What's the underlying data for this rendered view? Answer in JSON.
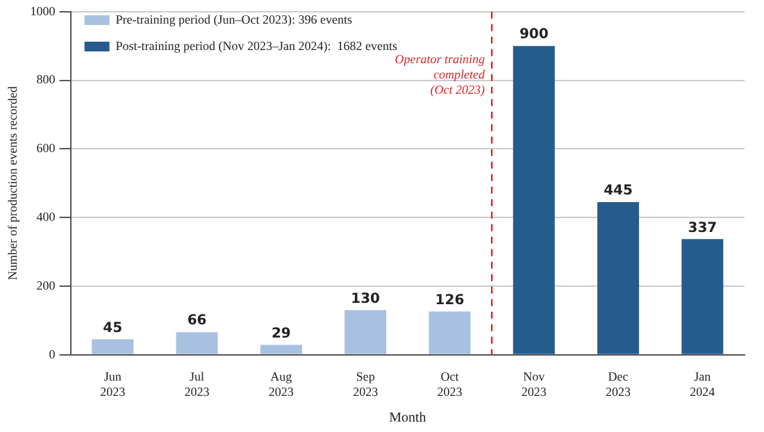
{
  "chart_data": {
    "type": "bar",
    "xlabel": "Month",
    "ylabel": "Number of production events recorded",
    "categories": [
      "Jun 2023",
      "Jul 2023",
      "Aug 2023",
      "Sep 2023",
      "Oct 2023",
      "Nov 2023",
      "Dec 2023",
      "Jan 2024"
    ],
    "series": [
      {
        "name": "Pre-training period (Jun–Oct 2023): 396 events",
        "color": "#a9c1e1",
        "values": [
          45,
          66,
          29,
          130,
          126,
          null,
          null,
          null
        ]
      },
      {
        "name": "Post-training period (Nov 2023–Jan 2024):  1682 events",
        "color": "#265b8e",
        "values": [
          null,
          null,
          null,
          null,
          null,
          900,
          445,
          337
        ]
      }
    ],
    "ylim": [
      0,
      1000
    ],
    "yticks": [
      0,
      200,
      400,
      600,
      800,
      1000
    ],
    "grid": "y",
    "legend": "top left",
    "data_labels": true,
    "ref_lines": [
      {
        "axis": "x",
        "value": "Oct 2023",
        "label": "Operator training\ncompleted\n(Oct 2023)",
        "color": "#d62728",
        "line_style": "dashed"
      }
    ]
  }
}
